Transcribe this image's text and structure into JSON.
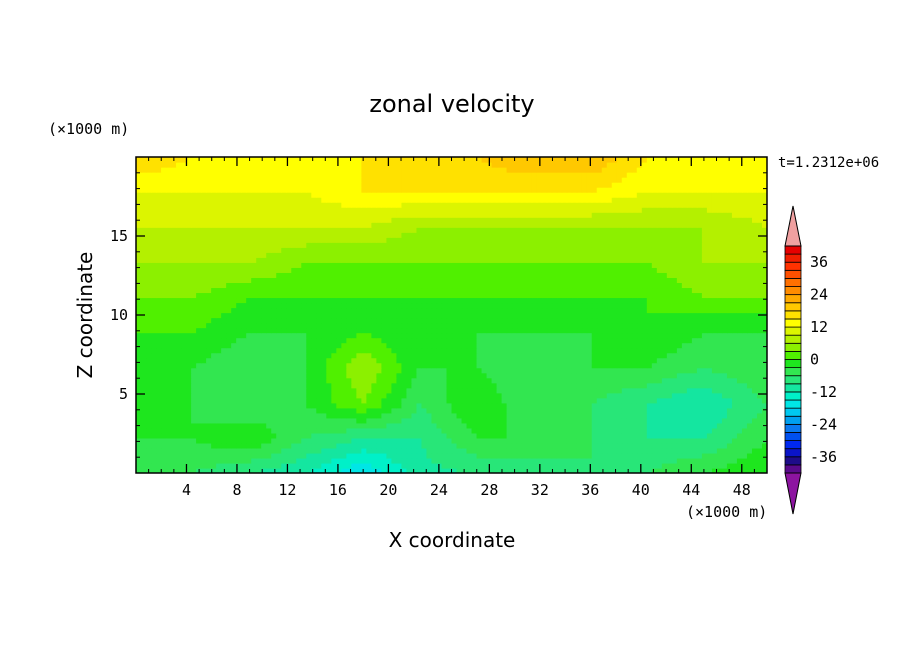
{
  "chart_data": {
    "type": "heatmap",
    "title": "zonal velocity",
    "xlabel": "X coordinate",
    "ylabel": "Z coordinate",
    "x_units": "(×1000 m)",
    "y_units": "(×1000 m)",
    "timestamp": "t=1.2312e+06",
    "xlim": [
      0,
      50
    ],
    "ylim": [
      0,
      20
    ],
    "x_ticks": [
      4,
      8,
      12,
      16,
      20,
      24,
      28,
      32,
      36,
      40,
      44,
      48
    ],
    "y_ticks": [
      5,
      10,
      15
    ],
    "colorbar": {
      "levels": [
        -42,
        -39,
        -36,
        -33,
        -30,
        -27,
        -24,
        -21,
        -18,
        -15,
        -12,
        -9,
        -6,
        -3,
        0,
        3,
        6,
        9,
        12,
        15,
        18,
        21,
        24,
        27,
        30,
        33,
        36,
        39,
        42
      ],
      "labels": [
        "36",
        "24",
        "12",
        "0",
        "-12",
        "-24",
        "-36"
      ],
      "label_values": [
        36,
        24,
        12,
        0,
        -12,
        -24,
        -36
      ],
      "colors": [
        "#5a0a8c",
        "#1e0c8a",
        "#0a14c8",
        "#0028f0",
        "#0050f0",
        "#0a78f0",
        "#00a0f0",
        "#00c8f0",
        "#00e6e6",
        "#00f0c8",
        "#14e6a0",
        "#28e678",
        "#32e650",
        "#1ee61e",
        "#50f000",
        "#8cf000",
        "#b4f000",
        "#dcf500",
        "#ffff00",
        "#ffe100",
        "#ffc800",
        "#ffaa00",
        "#ff8c00",
        "#ff7000",
        "#ff5000",
        "#ff3200",
        "#f01e00",
        "#e60000"
      ],
      "under_color": "#8c14a0",
      "over_color": "#f0a0a0"
    },
    "field_grid": {
      "nx": 12,
      "nz": 10,
      "x": [
        0,
        4.5,
        9,
        13.5,
        18,
        22.5,
        27,
        31.5,
        36,
        40.5,
        45,
        50
      ],
      "z": [
        0,
        2.2,
        4.4,
        6.7,
        8.9,
        11.1,
        13.3,
        15.6,
        17.8,
        20
      ],
      "u": [
        [
          -6,
          -6,
          -9,
          -12,
          -18,
          -10,
          -9,
          -9,
          -6,
          -6,
          -3,
          0
        ],
        [
          -3,
          -3,
          0,
          -6,
          -9,
          -9,
          -3,
          -3,
          -6,
          -9,
          -9,
          -3
        ],
        [
          -3,
          -3,
          -6,
          -3,
          3,
          -6,
          0,
          -6,
          -6,
          -9,
          -12,
          -6
        ],
        [
          0,
          -3,
          -6,
          -3,
          6,
          -3,
          -3,
          -6,
          -3,
          -3,
          -6,
          -3
        ],
        [
          0,
          0,
          -3,
          -3,
          0,
          -3,
          -3,
          -3,
          -3,
          0,
          -3,
          -3
        ],
        [
          3,
          3,
          0,
          0,
          0,
          0,
          0,
          0,
          0,
          0,
          3,
          3
        ],
        [
          6,
          6,
          6,
          3,
          3,
          3,
          3,
          3,
          3,
          3,
          6,
          6
        ],
        [
          9,
          9,
          9,
          9,
          9,
          6,
          6,
          6,
          6,
          6,
          6,
          9
        ],
        [
          12,
          12,
          12,
          12,
          15,
          15,
          15,
          15,
          15,
          12,
          12,
          12
        ],
        [
          18,
          15,
          15,
          15,
          15,
          15,
          18,
          21,
          21,
          15,
          15,
          15
        ]
      ]
    }
  }
}
